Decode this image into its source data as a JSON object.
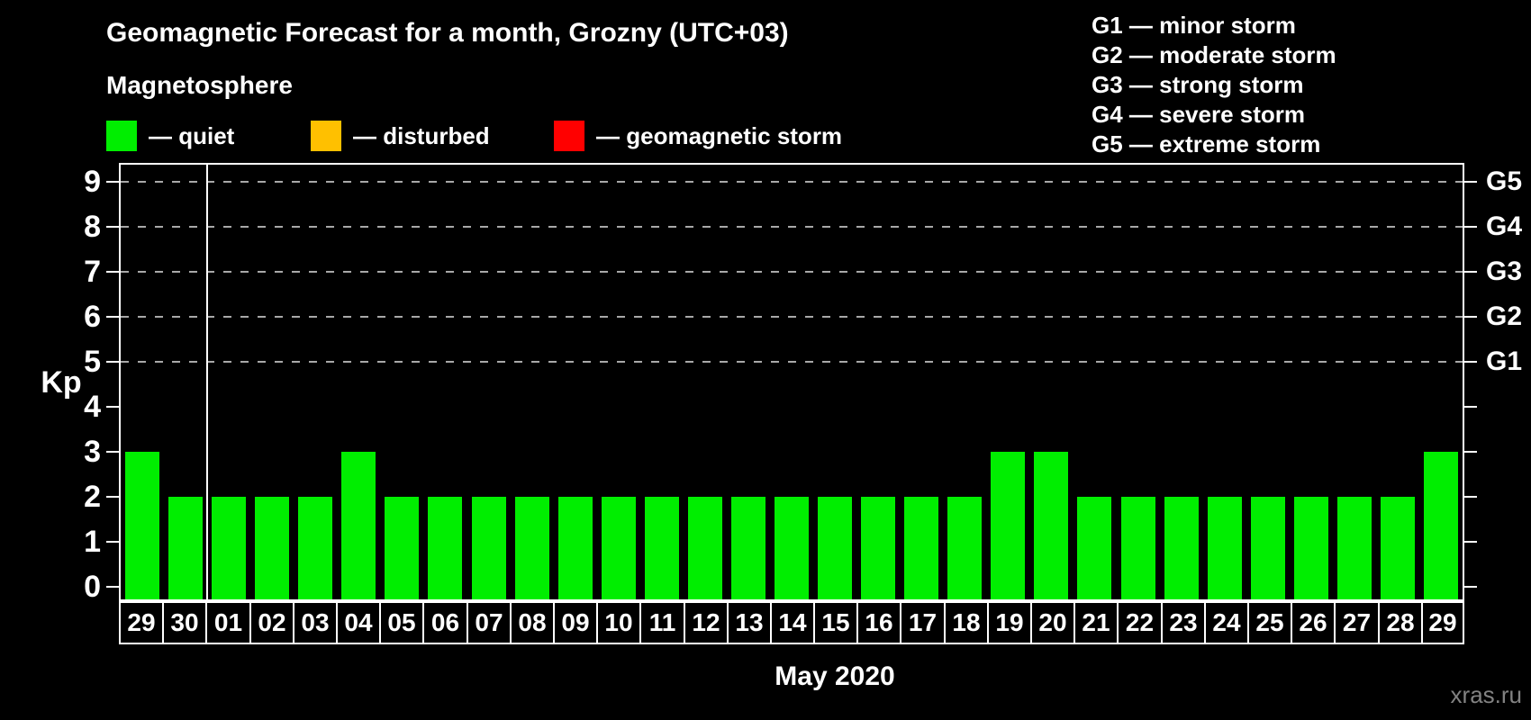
{
  "header": {
    "title": "Geomagnetic Forecast for a month, Grozny (UTC+03)",
    "subtitle": "Magnetosphere"
  },
  "legend": {
    "items": [
      {
        "name": "quiet",
        "label": "— quiet",
        "color": "#00ee00"
      },
      {
        "name": "disturbed",
        "label": "— disturbed",
        "color": "#ffc000"
      },
      {
        "name": "geomagnetic-storm",
        "label": "— geomagnetic storm",
        "color": "#ff0000"
      }
    ]
  },
  "g_legend": {
    "items": [
      "G1 — minor storm",
      "G2 — moderate storm",
      "G3 — strong storm",
      "G4 — severe storm",
      "G5 — extreme storm"
    ]
  },
  "chart_data": {
    "type": "bar",
    "title": "Geomagnetic Forecast for a month, Grozny (UTC+03)",
    "categories": [
      "29",
      "30",
      "01",
      "02",
      "03",
      "04",
      "05",
      "06",
      "07",
      "08",
      "09",
      "10",
      "11",
      "12",
      "13",
      "14",
      "15",
      "16",
      "17",
      "18",
      "19",
      "20",
      "21",
      "22",
      "23",
      "24",
      "25",
      "26",
      "27",
      "28",
      "29"
    ],
    "values": [
      3,
      2,
      2,
      2,
      2,
      3,
      2,
      2,
      2,
      2,
      2,
      2,
      2,
      2,
      2,
      2,
      2,
      2,
      2,
      2,
      3,
      3,
      2,
      2,
      2,
      2,
      2,
      2,
      2,
      2,
      3
    ],
    "xlabel": "May 2020",
    "ylabel": "Kp",
    "ylim": [
      0,
      9
    ],
    "y_ticks": [
      0,
      1,
      2,
      3,
      4,
      5,
      6,
      7,
      8,
      9
    ],
    "gridlines_at": [
      5,
      6,
      7,
      8,
      9
    ],
    "right_axis_labels": [
      {
        "kp": 5,
        "label": "G1"
      },
      {
        "kp": 6,
        "label": "G2"
      },
      {
        "kp": 7,
        "label": "G3"
      },
      {
        "kp": 8,
        "label": "G4"
      },
      {
        "kp": 9,
        "label": "G5"
      }
    ],
    "bar_color": "#00ee00",
    "month_separator_after_index": 1,
    "grid": true,
    "legend_position": "top-left"
  },
  "footer": {
    "watermark": "xras.ru"
  }
}
